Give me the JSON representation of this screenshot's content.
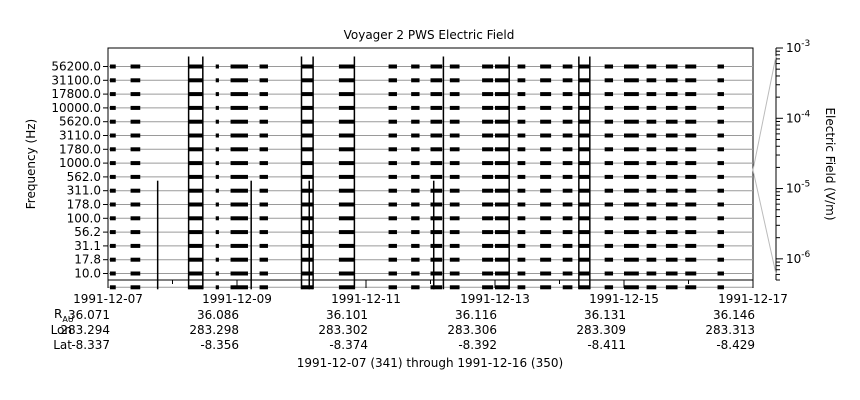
{
  "chart_data": {
    "type": "line",
    "title": "Voyager 2 PWS Electric Field",
    "ylabel": "Frequency (Hz)",
    "colorbar_label": "Electric Field (V/m)",
    "colorbar_ticks": [
      {
        "label_base": "10",
        "label_exp": "-3",
        "value": 0.001
      },
      {
        "label_base": "10",
        "label_exp": "-4",
        "value": 0.0001
      },
      {
        "label_base": "10",
        "label_exp": "-5",
        "value": 1e-05
      },
      {
        "label_base": "10",
        "label_exp": "-6",
        "value": 1e-06
      }
    ],
    "colorbar_range": [
      5e-07,
      0.001
    ],
    "colorbar_reference": 1.5e-05,
    "frequency_channels": [
      "56200.0",
      "31100.0",
      "17800.0",
      "10000.0",
      "5620.0",
      "3110.0",
      "1780.0",
      "1000.0",
      "562.0",
      "311.0",
      "178.0",
      "100.0",
      "56.2",
      "31.1",
      "17.8",
      "10.0"
    ],
    "x_range_days": [
      "1991-12-07",
      "1991-12-17"
    ],
    "x_ticks": [
      "1991-12-07",
      "1991-12-09",
      "1991-12-11",
      "1991-12-13",
      "1991-12-15",
      "1991-12-17"
    ],
    "ephemeris": {
      "rau_label": "R",
      "rau_sub": "AU",
      "lon_label": "Lon",
      "lat_label": "Lat",
      "rau": [
        "36.071",
        "36.086",
        "36.101",
        "36.116",
        "36.131",
        "36.146"
      ],
      "lon": [
        "283.294",
        "283.298",
        "283.302",
        "283.306",
        "283.309",
        "283.313"
      ],
      "lat": [
        "-8.337",
        "-8.356",
        "-8.374",
        "-8.392",
        "-8.411",
        "-8.429"
      ]
    },
    "xlabel": "1991-12-07 (341) through 1991-12-16 (350)",
    "data_blocks_days": [
      [
        0.03,
        0.12
      ],
      [
        0.35,
        0.5
      ],
      [
        1.25,
        1.47
      ],
      [
        1.67,
        1.72
      ],
      [
        1.9,
        2.17
      ],
      [
        2.35,
        2.48
      ],
      [
        3.0,
        3.18
      ],
      [
        3.58,
        3.82
      ],
      [
        4.35,
        4.48
      ],
      [
        4.7,
        4.83
      ],
      [
        5.0,
        5.18
      ],
      [
        5.3,
        5.45
      ],
      [
        5.8,
        5.97
      ],
      [
        6.0,
        6.22
      ],
      [
        6.35,
        6.47
      ],
      [
        6.7,
        6.87
      ],
      [
        7.05,
        7.2
      ],
      [
        7.3,
        7.47
      ],
      [
        7.7,
        7.83
      ],
      [
        8.0,
        8.23
      ],
      [
        8.35,
        8.5
      ],
      [
        8.65,
        8.83
      ],
      [
        8.95,
        9.12
      ],
      [
        9.45,
        9.55
      ]
    ],
    "spikes": [
      {
        "day": 1.25,
        "top_channel": "56200.0"
      },
      {
        "day": 1.47,
        "top_channel": "56200.0"
      },
      {
        "day": 3.0,
        "top_channel": "56200.0"
      },
      {
        "day": 3.18,
        "top_channel": "56200.0"
      },
      {
        "day": 3.82,
        "top_channel": "56200.0"
      },
      {
        "day": 5.2,
        "top_channel": "56200.0"
      },
      {
        "day": 6.22,
        "top_channel": "56200.0"
      },
      {
        "day": 7.3,
        "top_channel": "56200.0"
      },
      {
        "day": 7.47,
        "top_channel": "56200.0"
      },
      {
        "day": 0.77,
        "top_channel": "311.0"
      },
      {
        "day": 3.12,
        "top_channel": "311.0"
      },
      {
        "day": 5.05,
        "top_channel": "311.0"
      },
      {
        "day": 2.22,
        "top_channel": "311.0"
      }
    ]
  }
}
